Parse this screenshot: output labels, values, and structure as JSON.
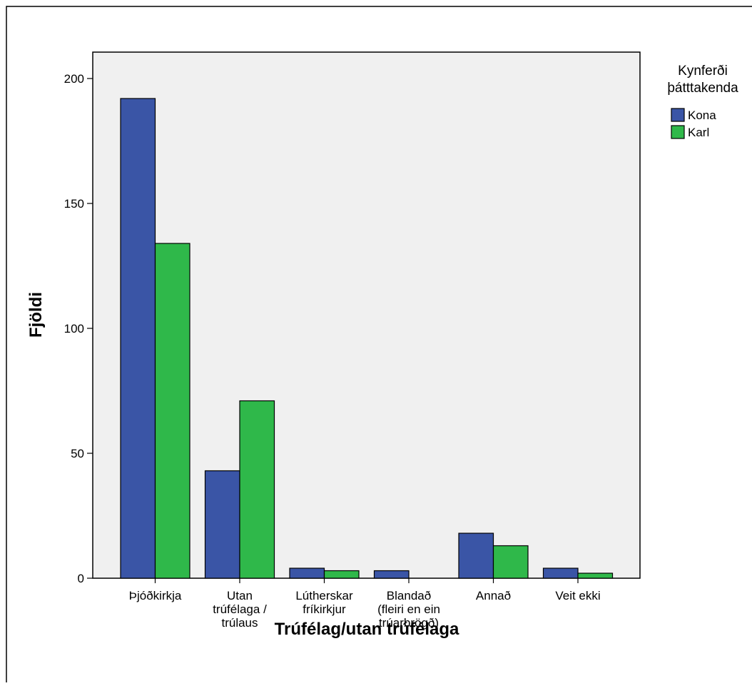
{
  "chart_data": {
    "type": "bar",
    "categories": [
      [
        "Þjóðkirkja"
      ],
      [
        "Utan",
        "trúfélaga /",
        "trúlaus"
      ],
      [
        "Lútherskar",
        "fríkirkjur"
      ],
      [
        "Blandað",
        "(fleiri en ein",
        "trúarbrögð)"
      ],
      [
        "Annað"
      ],
      [
        "Veit ekki"
      ]
    ],
    "series": [
      {
        "name": "Kona",
        "color": "#3a55a6",
        "values": [
          192,
          43,
          4,
          3,
          18,
          4
        ]
      },
      {
        "name": "Karl",
        "color": "#2fb84a",
        "values": [
          134,
          71,
          3,
          0,
          13,
          2
        ]
      }
    ],
    "xlabel": "Trúfélag/utan trúfélaga",
    "ylabel": "Fjöldi",
    "ylim": [
      0,
      200
    ],
    "yticks": [
      0,
      50,
      100,
      150,
      200
    ],
    "legend": {
      "title": [
        "Kynferði",
        "þátttakenda"
      ],
      "placement": "top-right"
    },
    "plot_background": "#f0f0f0",
    "grid": false
  }
}
